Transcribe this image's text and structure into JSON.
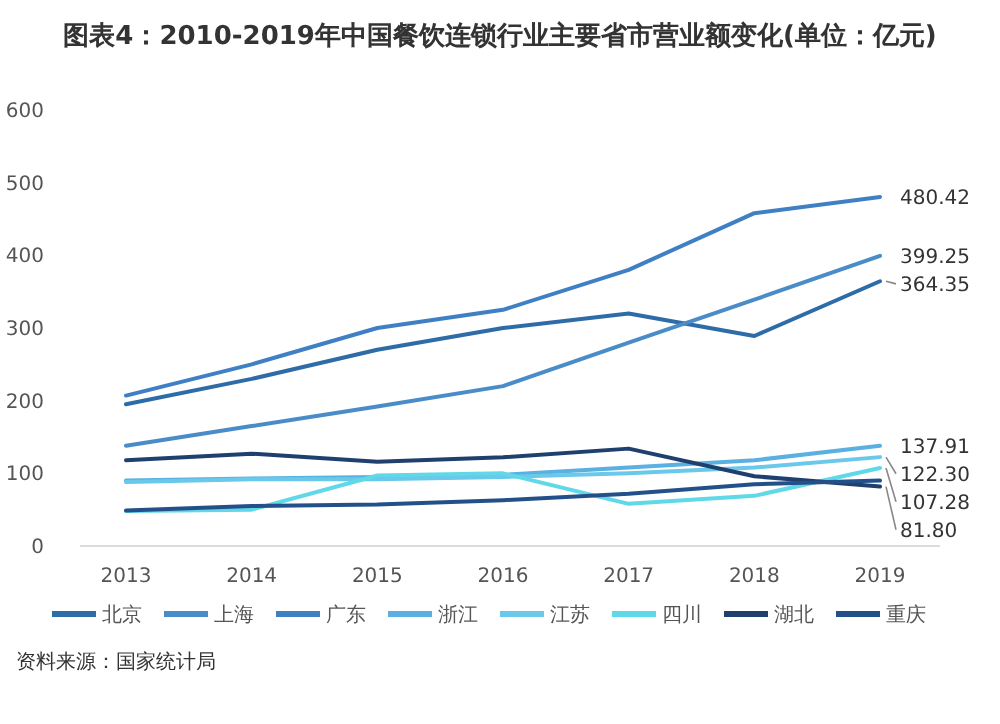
{
  "chart_data": {
    "type": "line",
    "title": "图表4：2010-2019年中国餐饮连锁行业主要省市营业额变化(单位：亿元)",
    "categories": [
      "2013",
      "2014",
      "2015",
      "2016",
      "2017",
      "2018",
      "2019"
    ],
    "ylim": [
      0,
      600
    ],
    "yticks": [
      0,
      100,
      200,
      300,
      400,
      500,
      600
    ],
    "grid": false,
    "legend": "bottom",
    "marker": "none",
    "line_style": "solid",
    "annotations": [
      "资料来源：国家统计局"
    ],
    "series": [
      {
        "name": "北京",
        "color": "#2e6ca8",
        "values": [
          195,
          230,
          270,
          300,
          320,
          289,
          364.35
        ],
        "value_labels": [
          null,
          null,
          null,
          null,
          null,
          null,
          "364.35"
        ]
      },
      {
        "name": "上海",
        "color": "#4a8cc8",
        "values": [
          138,
          165,
          192,
          220,
          280,
          339,
          399.25
        ],
        "value_labels": [
          null,
          null,
          null,
          null,
          null,
          null,
          "399.25"
        ]
      },
      {
        "name": "广东",
        "color": "#3f7fc4",
        "values": [
          207,
          250,
          300,
          325,
          380,
          458,
          480.42
        ],
        "value_labels": [
          null,
          null,
          null,
          null,
          null,
          null,
          "480.42"
        ]
      },
      {
        "name": "浙江",
        "color": "#5ab0e0",
        "values": [
          90,
          93,
          95,
          98,
          108,
          118,
          137.91
        ],
        "value_labels": [
          null,
          null,
          null,
          null,
          null,
          null,
          "137.91"
        ]
      },
      {
        "name": "江苏",
        "color": "#6ac8ea",
        "values": [
          88,
          92,
          92,
          95,
          100,
          108,
          122.3
        ],
        "value_labels": [
          null,
          null,
          null,
          null,
          null,
          null,
          "122.30"
        ]
      },
      {
        "name": "四川",
        "color": "#5fd8e8",
        "values": [
          48,
          50,
          97,
          100,
          58,
          69,
          107.28
        ],
        "value_labels": [
          null,
          null,
          null,
          null,
          null,
          null,
          "107.28"
        ]
      },
      {
        "name": "湖北",
        "color": "#1f3f6e",
        "values": [
          118,
          127,
          116,
          122,
          134,
          96,
          81.8
        ],
        "value_labels": [
          null,
          null,
          null,
          null,
          null,
          null,
          "81.80"
        ]
      },
      {
        "name": "重庆",
        "color": "#24508a",
        "values": [
          49,
          55,
          57,
          63,
          72,
          85,
          90
        ],
        "value_labels": [
          null,
          null,
          null,
          null,
          null,
          null,
          null
        ]
      }
    ]
  }
}
